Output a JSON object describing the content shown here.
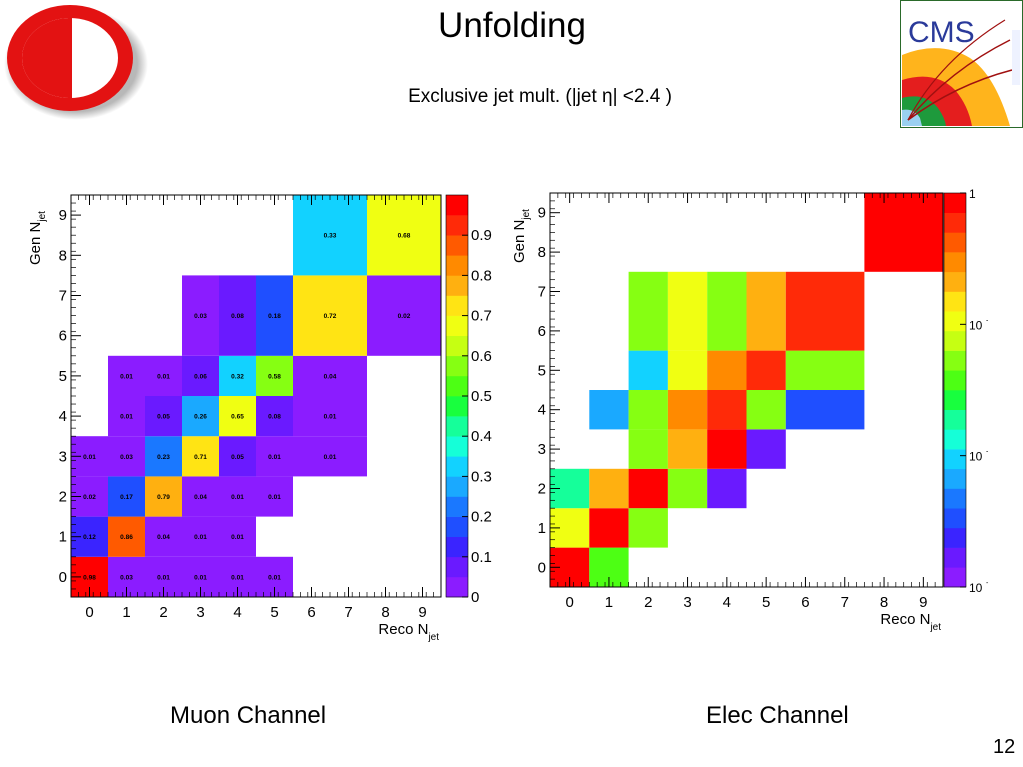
{
  "header": {
    "title": "Unfolding",
    "subtitle": "Exclusive jet mult. (|jet η| <2.4 )"
  },
  "logos": {
    "left": {
      "icon": "university-logo-icon",
      "colors": [
        "#e31212",
        "#ffffff"
      ]
    },
    "right": {
      "icon": "cms-logo-icon",
      "text": "CMS"
    }
  },
  "footer": {
    "page_number": "12"
  },
  "colors": {
    "palette": [
      "#8b1cff",
      "#6a1aff",
      "#3a24ff",
      "#1f4fff",
      "#1a78ff",
      "#1aa9ff",
      "#12d2ff",
      "#15ffd8",
      "#15ff9a",
      "#18ff3e",
      "#4dff14",
      "#86ff12",
      "#c6ff12",
      "#f0ff12",
      "#ffe414",
      "#ffb010",
      "#ff8a00",
      "#ff5a00",
      "#ff2a08",
      "#ff0000"
    ]
  },
  "chart_data": [
    {
      "type": "heatmap",
      "caption": "Muon Channel",
      "xlabel": "Reco N",
      "xlabel_sub": "jet",
      "ylabel": "Gen N",
      "ylabel_sub": "jet",
      "x_ticks": [
        "0",
        "1",
        "2",
        "3",
        "4",
        "5",
        "6",
        "7",
        "8",
        "9"
      ],
      "y_ticks": [
        "0",
        "1",
        "2",
        "3",
        "4",
        "5",
        "6",
        "7",
        "8",
        "9"
      ],
      "x_range": [
        -0.5,
        9.5
      ],
      "y_range": [
        -0.5,
        9.5
      ],
      "zlim": [
        0,
        1
      ],
      "z_scale": "linear",
      "colorbar_ticks": [
        "0",
        "0.1",
        "0.2",
        "0.3",
        "0.4",
        "0.5",
        "0.6",
        "0.7",
        "0.8",
        "0.9"
      ],
      "show_labels": true,
      "cells": [
        {
          "x0": -0.5,
          "x1": 0.5,
          "y0": -0.5,
          "y1": 0.5,
          "value": 0.98,
          "label": "0.98"
        },
        {
          "x0": 0.5,
          "x1": 1.5,
          "y0": -0.5,
          "y1": 0.5,
          "value": 0.03,
          "label": "0.03"
        },
        {
          "x0": 1.5,
          "x1": 2.5,
          "y0": -0.5,
          "y1": 0.5,
          "value": 0.01,
          "label": "0.01"
        },
        {
          "x0": 2.5,
          "x1": 3.5,
          "y0": -0.5,
          "y1": 0.5,
          "value": 0.01,
          "label": "0.01"
        },
        {
          "x0": 3.5,
          "x1": 4.5,
          "y0": -0.5,
          "y1": 0.5,
          "value": 0.01,
          "label": "0.01"
        },
        {
          "x0": 4.5,
          "x1": 5.5,
          "y0": -0.5,
          "y1": 0.5,
          "value": 0.01,
          "label": "0.01"
        },
        {
          "x0": -0.5,
          "x1": 0.5,
          "y0": 0.5,
          "y1": 1.5,
          "value": 0.12,
          "label": "0.12"
        },
        {
          "x0": 0.5,
          "x1": 1.5,
          "y0": 0.5,
          "y1": 1.5,
          "value": 0.86,
          "label": "0.86"
        },
        {
          "x0": 1.5,
          "x1": 2.5,
          "y0": 0.5,
          "y1": 1.5,
          "value": 0.04,
          "label": "0.04"
        },
        {
          "x0": 2.5,
          "x1": 3.5,
          "y0": 0.5,
          "y1": 1.5,
          "value": 0.01,
          "label": "0.01"
        },
        {
          "x0": 3.5,
          "x1": 4.5,
          "y0": 0.5,
          "y1": 1.5,
          "value": 0.01,
          "label": "0.01"
        },
        {
          "x0": -0.5,
          "x1": 0.5,
          "y0": 1.5,
          "y1": 2.5,
          "value": 0.02,
          "label": "0.02"
        },
        {
          "x0": 0.5,
          "x1": 1.5,
          "y0": 1.5,
          "y1": 2.5,
          "value": 0.17,
          "label": "0.17"
        },
        {
          "x0": 1.5,
          "x1": 2.5,
          "y0": 1.5,
          "y1": 2.5,
          "value": 0.79,
          "label": "0.79"
        },
        {
          "x0": 2.5,
          "x1": 3.5,
          "y0": 1.5,
          "y1": 2.5,
          "value": 0.04,
          "label": "0.04"
        },
        {
          "x0": 3.5,
          "x1": 4.5,
          "y0": 1.5,
          "y1": 2.5,
          "value": 0.01,
          "label": "0.01"
        },
        {
          "x0": 4.5,
          "x1": 5.5,
          "y0": 1.5,
          "y1": 2.5,
          "value": 0.01,
          "label": "0.01"
        },
        {
          "x0": -0.5,
          "x1": 0.5,
          "y0": 2.5,
          "y1": 3.5,
          "value": 0.01,
          "label": "0.01"
        },
        {
          "x0": 0.5,
          "x1": 1.5,
          "y0": 2.5,
          "y1": 3.5,
          "value": 0.03,
          "label": "0.03"
        },
        {
          "x0": 1.5,
          "x1": 2.5,
          "y0": 2.5,
          "y1": 3.5,
          "value": 0.23,
          "label": "0.23"
        },
        {
          "x0": 2.5,
          "x1": 3.5,
          "y0": 2.5,
          "y1": 3.5,
          "value": 0.71,
          "label": "0.71"
        },
        {
          "x0": 3.5,
          "x1": 4.5,
          "y0": 2.5,
          "y1": 3.5,
          "value": 0.05,
          "label": "0.05"
        },
        {
          "x0": 4.5,
          "x1": 5.5,
          "y0": 2.5,
          "y1": 3.5,
          "value": 0.01,
          "label": "0.01"
        },
        {
          "x0": 5.5,
          "x1": 7.5,
          "y0": 2.5,
          "y1": 3.5,
          "value": 0.01,
          "label": "0.01"
        },
        {
          "x0": 0.5,
          "x1": 1.5,
          "y0": 3.5,
          "y1": 4.5,
          "value": 0.01,
          "label": "0.01"
        },
        {
          "x0": 1.5,
          "x1": 2.5,
          "y0": 3.5,
          "y1": 4.5,
          "value": 0.05,
          "label": "0.05"
        },
        {
          "x0": 2.5,
          "x1": 3.5,
          "y0": 3.5,
          "y1": 4.5,
          "value": 0.26,
          "label": "0.26"
        },
        {
          "x0": 3.5,
          "x1": 4.5,
          "y0": 3.5,
          "y1": 4.5,
          "value": 0.65,
          "label": "0.65"
        },
        {
          "x0": 4.5,
          "x1": 5.5,
          "y0": 3.5,
          "y1": 4.5,
          "value": 0.08,
          "label": "0.08"
        },
        {
          "x0": 5.5,
          "x1": 7.5,
          "y0": 3.5,
          "y1": 4.5,
          "value": 0.01,
          "label": "0.01"
        },
        {
          "x0": 0.5,
          "x1": 1.5,
          "y0": 4.5,
          "y1": 5.5,
          "value": 0.01,
          "label": "0.01"
        },
        {
          "x0": 1.5,
          "x1": 2.5,
          "y0": 4.5,
          "y1": 5.5,
          "value": 0.01,
          "label": "0.01"
        },
        {
          "x0": 2.5,
          "x1": 3.5,
          "y0": 4.5,
          "y1": 5.5,
          "value": 0.06,
          "label": "0.06"
        },
        {
          "x0": 3.5,
          "x1": 4.5,
          "y0": 4.5,
          "y1": 5.5,
          "value": 0.32,
          "label": "0.32"
        },
        {
          "x0": 4.5,
          "x1": 5.5,
          "y0": 4.5,
          "y1": 5.5,
          "value": 0.58,
          "label": "0.58"
        },
        {
          "x0": 5.5,
          "x1": 7.5,
          "y0": 4.5,
          "y1": 5.5,
          "value": 0.04,
          "label": "0.04"
        },
        {
          "x0": 2.5,
          "x1": 3.5,
          "y0": 5.5,
          "y1": 7.5,
          "value": 0.03,
          "label": "0.03"
        },
        {
          "x0": 3.5,
          "x1": 4.5,
          "y0": 5.5,
          "y1": 7.5,
          "value": 0.08,
          "label": "0.08"
        },
        {
          "x0": 4.5,
          "x1": 5.5,
          "y0": 5.5,
          "y1": 7.5,
          "value": 0.18,
          "label": "0.18"
        },
        {
          "x0": 5.5,
          "x1": 7.5,
          "y0": 5.5,
          "y1": 7.5,
          "value": 0.72,
          "label": "0.72"
        },
        {
          "x0": 7.5,
          "x1": 9.5,
          "y0": 5.5,
          "y1": 7.5,
          "value": 0.02,
          "label": "0.02"
        },
        {
          "x0": 5.5,
          "x1": 7.5,
          "y0": 7.5,
          "y1": 9.5,
          "value": 0.33,
          "label": "0.33"
        },
        {
          "x0": 7.5,
          "x1": 9.5,
          "y0": 7.5,
          "y1": 9.5,
          "value": 0.68,
          "label": "0.68"
        }
      ]
    },
    {
      "type": "heatmap",
      "caption": "Elec Channel",
      "xlabel": "Reco N",
      "xlabel_sub": "jet",
      "ylabel": "Gen N",
      "ylabel_sub": "jet",
      "x_ticks": [
        "0",
        "1",
        "2",
        "3",
        "4",
        "5",
        "6",
        "7",
        "8",
        "9"
      ],
      "y_ticks": [
        "0",
        "1",
        "2",
        "3",
        "4",
        "5",
        "6",
        "7",
        "8",
        "9"
      ],
      "x_range": [
        -0.5,
        9.5
      ],
      "y_range": [
        -0.5,
        9.5
      ],
      "zlim": [
        0.001,
        1
      ],
      "z_scale": "log",
      "colorbar_ticks": [
        "1",
        "10",
        "10",
        "10"
      ],
      "show_labels": false,
      "cells": [
        {
          "x0": -0.5,
          "x1": 0.5,
          "y0": -0.5,
          "y1": 0.5,
          "value": 0.98
        },
        {
          "x0": 0.5,
          "x1": 1.5,
          "y0": -0.5,
          "y1": 0.5,
          "value": 0.04
        },
        {
          "x0": -0.5,
          "x1": 0.5,
          "y0": 0.5,
          "y1": 1.5,
          "value": 0.1
        },
        {
          "x0": 0.5,
          "x1": 1.5,
          "y0": 0.5,
          "y1": 1.5,
          "value": 0.87
        },
        {
          "x0": 1.5,
          "x1": 2.5,
          "y0": 0.5,
          "y1": 1.5,
          "value": 0.06
        },
        {
          "x0": -0.5,
          "x1": 0.5,
          "y0": 1.5,
          "y1": 2.5,
          "value": 0.02
        },
        {
          "x0": 0.5,
          "x1": 1.5,
          "y0": 1.5,
          "y1": 2.5,
          "value": 0.2
        },
        {
          "x0": 1.5,
          "x1": 2.5,
          "y0": 1.5,
          "y1": 2.5,
          "value": 0.85
        },
        {
          "x0": 2.5,
          "x1": 3.5,
          "y0": 1.5,
          "y1": 2.5,
          "value": 0.05
        },
        {
          "x0": 3.5,
          "x1": 4.5,
          "y0": 1.5,
          "y1": 2.5,
          "value": 0.0015
        },
        {
          "x0": 1.5,
          "x1": 2.5,
          "y0": 2.5,
          "y1": 3.5,
          "value": 0.05
        },
        {
          "x0": 2.5,
          "x1": 3.5,
          "y0": 2.5,
          "y1": 3.5,
          "value": 0.2
        },
        {
          "x0": 3.5,
          "x1": 4.5,
          "y0": 2.5,
          "y1": 3.5,
          "value": 0.9
        },
        {
          "x0": 4.5,
          "x1": 5.5,
          "y0": 2.5,
          "y1": 3.5,
          "value": 0.0015
        },
        {
          "x0": 0.5,
          "x1": 1.5,
          "y0": 3.5,
          "y1": 4.5,
          "value": 0.007
        },
        {
          "x0": 1.5,
          "x1": 2.5,
          "y0": 3.5,
          "y1": 4.5,
          "value": 0.06
        },
        {
          "x0": 2.5,
          "x1": 3.5,
          "y0": 3.5,
          "y1": 4.5,
          "value": 0.3
        },
        {
          "x0": 3.5,
          "x1": 4.5,
          "y0": 3.5,
          "y1": 4.5,
          "value": 0.6
        },
        {
          "x0": 4.5,
          "x1": 5.5,
          "y0": 3.5,
          "y1": 4.5,
          "value": 0.05
        },
        {
          "x0": 5.5,
          "x1": 7.5,
          "y0": 3.5,
          "y1": 4.5,
          "value": 0.003
        },
        {
          "x0": 1.5,
          "x1": 2.5,
          "y0": 4.5,
          "y1": 5.5,
          "value": 0.008
        },
        {
          "x0": 2.5,
          "x1": 3.5,
          "y0": 4.5,
          "y1": 5.5,
          "value": 0.09
        },
        {
          "x0": 3.5,
          "x1": 4.5,
          "y0": 4.5,
          "y1": 5.5,
          "value": 0.3
        },
        {
          "x0": 4.5,
          "x1": 5.5,
          "y0": 4.5,
          "y1": 5.5,
          "value": 0.6
        },
        {
          "x0": 5.5,
          "x1": 7.5,
          "y0": 4.5,
          "y1": 5.5,
          "value": 0.06
        },
        {
          "x0": 1.5,
          "x1": 2.5,
          "y0": 5.5,
          "y1": 7.5,
          "value": 0.05
        },
        {
          "x0": 2.5,
          "x1": 3.5,
          "y0": 5.5,
          "y1": 7.5,
          "value": 0.1
        },
        {
          "x0": 3.5,
          "x1": 4.5,
          "y0": 5.5,
          "y1": 7.5,
          "value": 0.06
        },
        {
          "x0": 4.5,
          "x1": 5.5,
          "y0": 5.5,
          "y1": 7.5,
          "value": 0.25
        },
        {
          "x0": 5.5,
          "x1": 7.5,
          "y0": 5.5,
          "y1": 7.5,
          "value": 0.6
        },
        {
          "x0": 7.5,
          "x1": 9.5,
          "y0": 7.5,
          "y1": 9.5,
          "value": 0.95
        }
      ]
    }
  ]
}
